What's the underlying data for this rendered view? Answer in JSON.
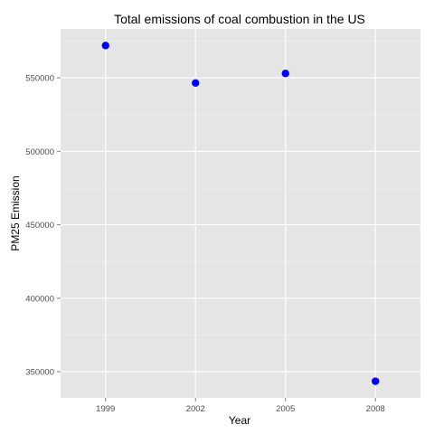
{
  "chart_data": {
    "type": "scatter",
    "title": "Total emissions of coal combustion in the US",
    "xlabel": "Year",
    "ylabel": "PM25 Emission",
    "x": [
      1999,
      2002,
      2005,
      2008
    ],
    "y": [
      572000,
      546500,
      553000,
      343500
    ],
    "xticks": [
      "1999",
      "2002",
      "2005",
      "2008"
    ],
    "yticks": [
      350000,
      400000,
      450000,
      500000,
      550000
    ],
    "ytick_labels": [
      "350000",
      "400000",
      "450000",
      "500000",
      "550000"
    ],
    "xlim": [
      1997.5,
      2009.5
    ],
    "ylim": [
      332200,
      583300
    ],
    "grid": true,
    "colors": {
      "panel": "#e5e5e5",
      "grid_major": "#ffffff",
      "grid_minor": "#f2f2f2",
      "point": "#0000ff"
    }
  }
}
